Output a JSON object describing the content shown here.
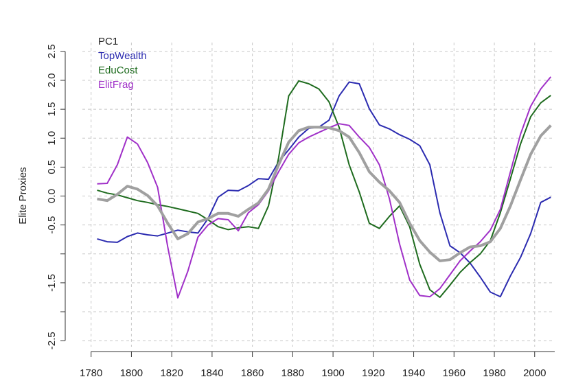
{
  "chart_data": {
    "type": "line",
    "y_label": "Elite Proxies",
    "x": [
      1783,
      1788,
      1793,
      1798,
      1803,
      1808,
      1813,
      1818,
      1823,
      1828,
      1833,
      1838,
      1843,
      1848,
      1853,
      1858,
      1863,
      1868,
      1873,
      1878,
      1883,
      1888,
      1893,
      1898,
      1903,
      1908,
      1913,
      1918,
      1923,
      1928,
      1933,
      1938,
      1943,
      1948,
      1953,
      1958,
      1963,
      1968,
      1973,
      1978,
      1983,
      1988,
      1993,
      1998,
      2003,
      2008
    ],
    "series": [
      {
        "name": "PC1",
        "color": "#a0a0a0",
        "width": 4,
        "values": [
          -0.05,
          -0.08,
          0.03,
          0.17,
          0.12,
          0.01,
          -0.17,
          -0.47,
          -0.74,
          -0.65,
          -0.45,
          -0.39,
          -0.3,
          -0.3,
          -0.35,
          -0.23,
          -0.12,
          0.12,
          0.54,
          0.93,
          1.13,
          1.19,
          1.19,
          1.18,
          1.13,
          1.02,
          0.75,
          0.42,
          0.24,
          0.09,
          -0.11,
          -0.47,
          -0.77,
          -0.97,
          -1.12,
          -1.1,
          -0.98,
          -0.88,
          -0.86,
          -0.79,
          -0.56,
          -0.17,
          0.28,
          0.72,
          1.04,
          1.22
        ]
      },
      {
        "name": "TopWealth",
        "color": "#2b2bb0",
        "width": 2,
        "values": [
          -0.74,
          -0.79,
          -0.8,
          -0.7,
          -0.64,
          -0.67,
          -0.69,
          -0.64,
          -0.59,
          -0.62,
          -0.64,
          -0.39,
          -0.02,
          0.1,
          0.09,
          0.18,
          0.3,
          0.29,
          0.59,
          0.8,
          1.02,
          1.17,
          1.19,
          1.31,
          1.73,
          1.97,
          1.94,
          1.51,
          1.23,
          1.16,
          1.06,
          0.98,
          0.87,
          0.54,
          -0.29,
          -0.86,
          -0.98,
          -1.16,
          -1.4,
          -1.66,
          -1.74,
          -1.38,
          -1.06,
          -0.65,
          -0.11,
          -0.02
        ]
      },
      {
        "name": "EduCost",
        "color": "#1e6b1e",
        "width": 2,
        "values": [
          0.1,
          0.05,
          0.02,
          -0.03,
          -0.08,
          -0.11,
          -0.15,
          -0.18,
          -0.22,
          -0.26,
          -0.3,
          -0.41,
          -0.53,
          -0.58,
          -0.55,
          -0.53,
          -0.56,
          -0.17,
          0.66,
          1.73,
          1.99,
          1.94,
          1.85,
          1.63,
          1.19,
          0.54,
          0.07,
          -0.47,
          -0.56,
          -0.35,
          -0.17,
          -0.53,
          -1.18,
          -1.62,
          -1.75,
          -1.54,
          -1.32,
          -1.15,
          -1.0,
          -0.77,
          -0.29,
          0.3,
          0.9,
          1.37,
          1.61,
          1.74
        ]
      },
      {
        "name": "ElitFrag",
        "color": "#a030c8",
        "width": 2,
        "values": [
          0.21,
          0.22,
          0.54,
          1.02,
          0.9,
          0.58,
          0.15,
          -0.88,
          -1.76,
          -1.3,
          -0.71,
          -0.5,
          -0.39,
          -0.41,
          -0.6,
          -0.29,
          -0.15,
          0.09,
          0.42,
          0.72,
          0.92,
          1.02,
          1.1,
          1.18,
          1.25,
          1.22,
          1.02,
          0.84,
          0.54,
          -0.05,
          -0.83,
          -1.45,
          -1.72,
          -1.74,
          -1.6,
          -1.36,
          -1.12,
          -0.95,
          -0.79,
          -0.59,
          -0.23,
          0.42,
          1.07,
          1.55,
          1.85,
          2.06
        ]
      }
    ],
    "xlim": [
      1775,
      2012
    ],
    "ylim": [
      -2.7,
      2.7
    ],
    "xticks": [
      1780,
      1800,
      1820,
      1840,
      1860,
      1880,
      1900,
      1920,
      1940,
      1960,
      1980,
      2000
    ],
    "yticks": [
      {
        "value": -2.5,
        "label": "-2.5"
      },
      {
        "value": -2,
        "label": null
      },
      {
        "value": -1.5,
        "label": "-1.5"
      },
      {
        "value": -1,
        "label": null
      },
      {
        "value": -0.5,
        "label": "-0.5"
      },
      {
        "value": 0,
        "label": "0.0"
      },
      {
        "value": 0.5,
        "label": "0.5"
      },
      {
        "value": 1,
        "label": "1.0"
      },
      {
        "value": 1.5,
        "label": "1.5"
      },
      {
        "value": 2,
        "label": "2.0"
      },
      {
        "value": 2.5,
        "label": "2.5"
      }
    ],
    "grid": true,
    "legend": "top-left"
  }
}
